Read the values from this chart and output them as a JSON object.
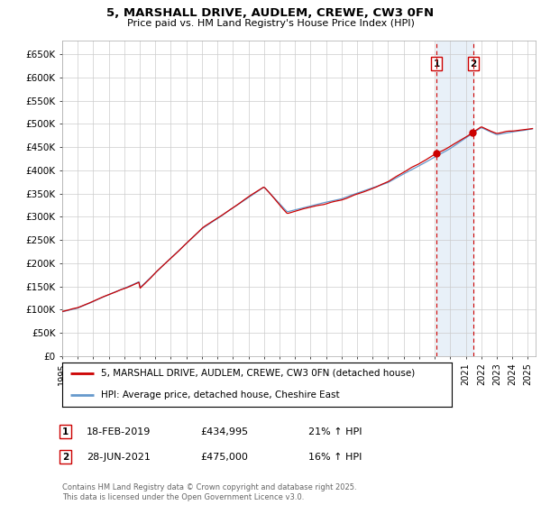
{
  "title": "5, MARSHALL DRIVE, AUDLEM, CREWE, CW3 0FN",
  "subtitle": "Price paid vs. HM Land Registry's House Price Index (HPI)",
  "ylabel_ticks": [
    "£0",
    "£50K",
    "£100K",
    "£150K",
    "£200K",
    "£250K",
    "£300K",
    "£350K",
    "£400K",
    "£450K",
    "£500K",
    "£550K",
    "£600K",
    "£650K"
  ],
  "ytick_values": [
    0,
    50000,
    100000,
    150000,
    200000,
    250000,
    300000,
    350000,
    400000,
    450000,
    500000,
    550000,
    600000,
    650000
  ],
  "ylim": [
    0,
    680000
  ],
  "xlim_start": 1995.0,
  "xlim_end": 2025.5,
  "hpi_color": "#6699cc",
  "price_color": "#cc0000",
  "marker1_x": 2019.12,
  "marker2_x": 2021.49,
  "marker1_price": 434995,
  "marker2_price": 475000,
  "marker1_label": "18-FEB-2019",
  "marker2_label": "28-JUN-2021",
  "marker1_pct": "21% ↑ HPI",
  "marker2_pct": "16% ↑ HPI",
  "legend_line1": "5, MARSHALL DRIVE, AUDLEM, CREWE, CW3 0FN (detached house)",
  "legend_line2": "HPI: Average price, detached house, Cheshire East",
  "footnote": "Contains HM Land Registry data © Crown copyright and database right 2025.\nThis data is licensed under the Open Government Licence v3.0.",
  "background_color": "#ffffff",
  "grid_color": "#cccccc",
  "highlight_color": "#e8f0f8"
}
